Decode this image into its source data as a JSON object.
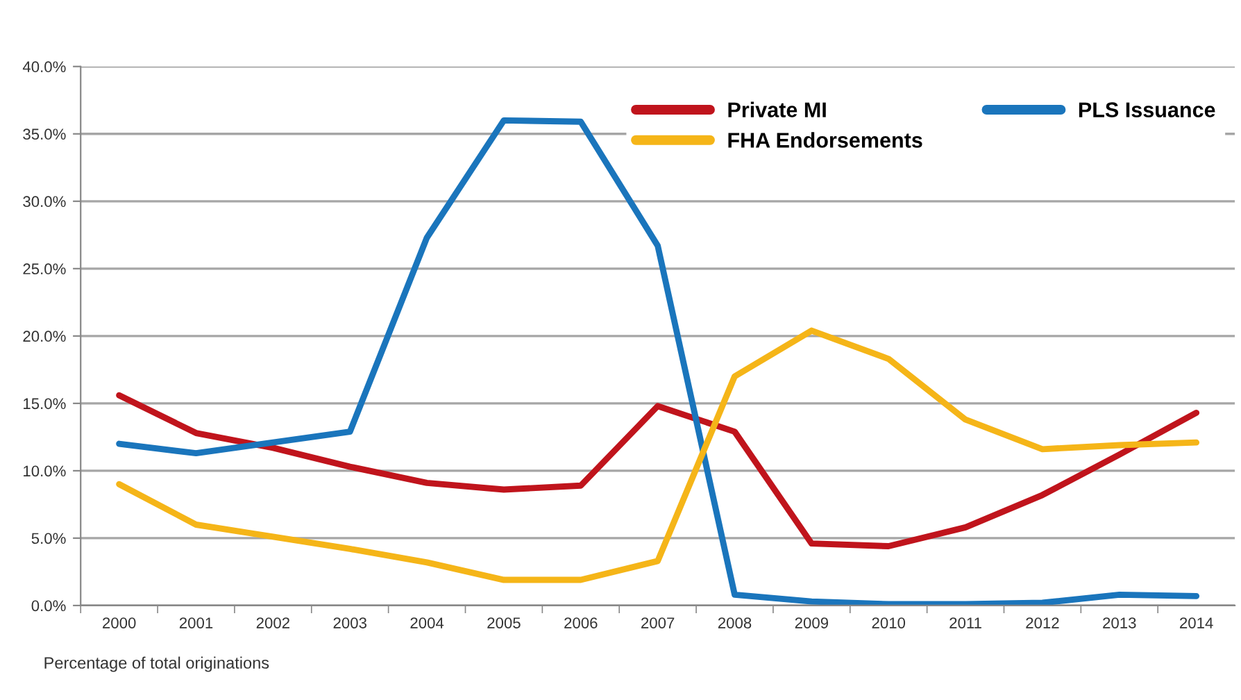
{
  "chart_data": {
    "type": "line",
    "categories": [
      "2000",
      "2001",
      "2002",
      "2003",
      "2004",
      "2005",
      "2006",
      "2007",
      "2008",
      "2009",
      "2010",
      "2011",
      "2012",
      "2013",
      "2014"
    ],
    "series": [
      {
        "name": "Private MI",
        "color": "#c0141c",
        "values": [
          15.6,
          12.8,
          11.7,
          10.3,
          9.1,
          8.6,
          8.9,
          14.8,
          12.9,
          4.6,
          4.4,
          5.8,
          8.2,
          11.2,
          14.3
        ]
      },
      {
        "name": "PLS Issuance",
        "color": "#1a75bc",
        "values": [
          12.0,
          11.3,
          12.1,
          12.9,
          27.3,
          36.0,
          35.9,
          26.7,
          0.8,
          0.3,
          0.1,
          0.1,
          0.2,
          0.8,
          0.7
        ]
      },
      {
        "name": "FHA Endorsements",
        "color": "#f5b518",
        "values": [
          9.0,
          6.0,
          5.1,
          4.2,
          3.2,
          1.9,
          1.9,
          3.3,
          17.0,
          20.4,
          18.3,
          13.8,
          11.6,
          11.9,
          12.1
        ]
      }
    ],
    "ylim": [
      0,
      40
    ],
    "yticks": [
      {
        "value": 0,
        "label": "0.0%"
      },
      {
        "value": 5,
        "label": "5.0%"
      },
      {
        "value": 10,
        "label": "10.0%"
      },
      {
        "value": 15,
        "label": "15.0%"
      },
      {
        "value": 20,
        "label": "20.0%"
      },
      {
        "value": 25,
        "label": "25.0%"
      },
      {
        "value": 30,
        "label": "30.0%"
      },
      {
        "value": 35,
        "label": "35.0%"
      },
      {
        "value": 40,
        "label": "40.0%"
      }
    ],
    "grid": "y",
    "legend": "top right",
    "marker": "none",
    "line_style": "solid",
    "annotations": [
      "Percentage of total originations"
    ]
  }
}
